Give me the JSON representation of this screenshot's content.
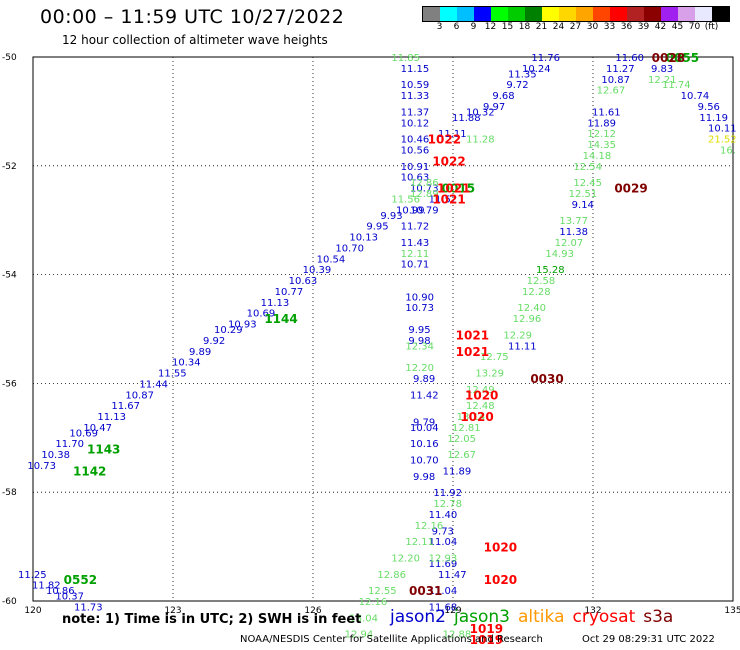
{
  "header": {
    "title": "00:00 – 11:59 UTC 10/27/2022",
    "subtitle": "12 hour collection of altimeter wave heights"
  },
  "scale": {
    "colors": [
      "#808080",
      "#00ffff",
      "#00bfff",
      "#0000ff",
      "#00ff00",
      "#00cc00",
      "#008000",
      "#ffff00",
      "#ffd700",
      "#ffa500",
      "#ff4500",
      "#ff0000",
      "#b22222",
      "#8b0000",
      "#a020f0",
      "#d8a0e8",
      "#e8e8ff",
      "#000000"
    ],
    "labels": [
      "3",
      "6",
      "9",
      "12",
      "15",
      "18",
      "21",
      "24",
      "27",
      "30",
      "33",
      "36",
      "39",
      "42",
      "45",
      "70",
      "(ft)"
    ]
  },
  "axes": {
    "lon_ticks": [
      "120",
      "123",
      "126",
      "129",
      "132",
      "135"
    ],
    "lat_ticks": [
      "-50",
      "-52",
      "-54",
      "-56",
      "-58",
      "-60"
    ]
  },
  "colors": {
    "jason2": "#0000cc",
    "jason3": "#00a000",
    "altika": "#ff9900",
    "cryosat": "#ff0000",
    "s3a": "#800000",
    "swh_light": "#66dd66",
    "swh_yellow": "#dddd00"
  },
  "observations": [
    {
      "lon": 120.2,
      "lat": -57.5,
      "text": "10.73",
      "c": "jason2"
    },
    {
      "lon": 120.5,
      "lat": -57.3,
      "text": "10.38",
      "c": "jason2"
    },
    {
      "lon": 120.8,
      "lat": -57.1,
      "text": "11.70",
      "c": "jason2"
    },
    {
      "lon": 121.1,
      "lat": -56.9,
      "text": "10.69",
      "c": "jason2"
    },
    {
      "lon": 121.4,
      "lat": -56.8,
      "text": "10.47",
      "c": "jason2"
    },
    {
      "lon": 121.7,
      "lat": -56.6,
      "text": "11.13",
      "c": "jason2"
    },
    {
      "lon": 122.0,
      "lat": -56.4,
      "text": "11.67",
      "c": "jason2"
    },
    {
      "lon": 122.3,
      "lat": -56.2,
      "text": "10.87",
      "c": "jason2"
    },
    {
      "lon": 122.6,
      "lat": -56.0,
      "text": "11.44",
      "c": "jason2"
    },
    {
      "lon": 123.0,
      "lat": -55.8,
      "text": "11.55",
      "c": "jason2"
    },
    {
      "lon": 123.3,
      "lat": -55.6,
      "text": "10.34",
      "c": "jason2"
    },
    {
      "lon": 123.6,
      "lat": -55.4,
      "text": "9.89",
      "c": "jason2"
    },
    {
      "lon": 123.9,
      "lat": -55.2,
      "text": "9.92",
      "c": "jason2"
    },
    {
      "lon": 124.2,
      "lat": -55.0,
      "text": "10.29",
      "c": "jason2"
    },
    {
      "lon": 124.5,
      "lat": -54.9,
      "text": "10.93",
      "c": "jason2"
    },
    {
      "lon": 124.9,
      "lat": -54.7,
      "text": "10.69",
      "c": "jason2"
    },
    {
      "lon": 125.2,
      "lat": -54.5,
      "text": "11.13",
      "c": "jason2"
    },
    {
      "lon": 125.5,
      "lat": -54.3,
      "text": "10.77",
      "c": "jason2"
    },
    {
      "lon": 125.8,
      "lat": -54.1,
      "text": "10.63",
      "c": "jason2"
    },
    {
      "lon": 126.1,
      "lat": -53.9,
      "text": "10.39",
      "c": "jason2"
    },
    {
      "lon": 126.4,
      "lat": -53.7,
      "text": "10.54",
      "c": "jason2"
    },
    {
      "lon": 126.8,
      "lat": -53.5,
      "text": "10.70",
      "c": "jason2"
    },
    {
      "lon": 127.1,
      "lat": -53.3,
      "text": "10.13",
      "c": "jason2"
    },
    {
      "lon": 127.4,
      "lat": -53.1,
      "text": "9.95",
      "c": "jason2"
    },
    {
      "lon": 127.7,
      "lat": -52.9,
      "text": "9.93",
      "c": "jason2"
    },
    {
      "lon": 128.2,
      "lat": -50.2,
      "text": "11.15",
      "c": "jason2"
    },
    {
      "lon": 128.2,
      "lat": -50.5,
      "text": "10.59",
      "c": "jason2"
    },
    {
      "lon": 128.2,
      "lat": -50.7,
      "text": "11.33",
      "c": "jason2"
    },
    {
      "lon": 128.2,
      "lat": -51.0,
      "text": "11.37",
      "c": "jason2"
    },
    {
      "lon": 128.2,
      "lat": -51.2,
      "text": "10.12",
      "c": "jason2"
    },
    {
      "lon": 128.2,
      "lat": -51.5,
      "text": "10.46",
      "c": "jason2"
    },
    {
      "lon": 128.2,
      "lat": -51.7,
      "text": "10.56",
      "c": "jason2"
    },
    {
      "lon": 128.2,
      "lat": -52.0,
      "text": "10.91",
      "c": "jason2"
    },
    {
      "lon": 128.2,
      "lat": -52.2,
      "text": "10.63",
      "c": "jason2"
    },
    {
      "lon": 128.4,
      "lat": -52.4,
      "text": "10.73",
      "c": "jason2"
    },
    {
      "lon": 128.1,
      "lat": -52.8,
      "text": "10.99",
      "c": "jason2"
    },
    {
      "lon": 128.4,
      "lat": -52.8,
      "text": "10.79",
      "c": "jason2"
    },
    {
      "lon": 128.2,
      "lat": -53.1,
      "text": "11.72",
      "c": "jason2"
    },
    {
      "lon": 128.2,
      "lat": -53.4,
      "text": "11.43",
      "c": "jason2"
    },
    {
      "lon": 128.2,
      "lat": -53.8,
      "text": "10.71",
      "c": "jason2"
    },
    {
      "lon": 128.3,
      "lat": -54.4,
      "text": "10.90",
      "c": "jason2"
    },
    {
      "lon": 128.3,
      "lat": -54.6,
      "text": "10.73",
      "c": "jason2"
    },
    {
      "lon": 128.3,
      "lat": -55.0,
      "text": "9.95",
      "c": "jason2"
    },
    {
      "lon": 128.3,
      "lat": -55.2,
      "text": "9.98",
      "c": "jason2"
    },
    {
      "lon": 128.4,
      "lat": -55.9,
      "text": "9.89",
      "c": "jason2"
    },
    {
      "lon": 128.4,
      "lat": -56.2,
      "text": "11.42",
      "c": "jason2"
    },
    {
      "lon": 128.4,
      "lat": -56.7,
      "text": "9.79",
      "c": "jason2"
    },
    {
      "lon": 128.4,
      "lat": -56.8,
      "text": "10.04",
      "c": "jason2"
    },
    {
      "lon": 128.4,
      "lat": -57.1,
      "text": "10.16",
      "c": "jason2"
    },
    {
      "lon": 128.4,
      "lat": -57.4,
      "text": "10.70",
      "c": "jason2"
    },
    {
      "lon": 128.4,
      "lat": -57.7,
      "text": "9.98",
      "c": "jason2"
    },
    {
      "lon": 129.1,
      "lat": -57.6,
      "text": "11.89",
      "c": "jason2"
    },
    {
      "lon": 128.9,
      "lat": -58.0,
      "text": "11.92",
      "c": "jason2"
    },
    {
      "lon": 128.8,
      "lat": -58.4,
      "text": "11.40",
      "c": "jason2"
    },
    {
      "lon": 128.8,
      "lat": -58.7,
      "text": "9.73",
      "c": "jason2"
    },
    {
      "lon": 128.8,
      "lat": -58.9,
      "text": "11.04",
      "c": "jason2"
    },
    {
      "lon": 128.8,
      "lat": -59.3,
      "text": "11.69",
      "c": "jason2"
    },
    {
      "lon": 129.0,
      "lat": -59.5,
      "text": "11.47",
      "c": "jason2"
    },
    {
      "lon": 128.8,
      "lat": -59.8,
      "text": "11.04",
      "c": "jason2"
    },
    {
      "lon": 128.8,
      "lat": -60.1,
      "text": "11.68",
      "c": "jason2"
    },
    {
      "lon": 128.8,
      "lat": -52.6,
      "text": "11.52",
      "c": "jason2"
    },
    {
      "lon": 129.0,
      "lat": -51.4,
      "text": "11.11",
      "c": "jason2"
    },
    {
      "lon": 129.3,
      "lat": -51.1,
      "text": "11.88",
      "c": "jason2"
    },
    {
      "lon": 129.6,
      "lat": -51.0,
      "text": "10.32",
      "c": "jason2"
    },
    {
      "lon": 129.9,
      "lat": -50.9,
      "text": "9.97",
      "c": "jason2"
    },
    {
      "lon": 130.1,
      "lat": -50.7,
      "text": "9.68",
      "c": "jason2"
    },
    {
      "lon": 130.4,
      "lat": -50.5,
      "text": "9.72",
      "c": "jason2"
    },
    {
      "lon": 130.5,
      "lat": -50.3,
      "text": "11.35",
      "c": "jason2"
    },
    {
      "lon": 130.8,
      "lat": -50.2,
      "text": "10.24",
      "c": "jason2"
    },
    {
      "lon": 131.0,
      "lat": -50.0,
      "text": "11.76",
      "c": "jason2"
    },
    {
      "lon": 132.8,
      "lat": -50.0,
      "text": "11.60",
      "c": "jason2"
    },
    {
      "lon": 132.6,
      "lat": -50.2,
      "text": "11.27",
      "c": "jason2"
    },
    {
      "lon": 132.5,
      "lat": -50.4,
      "text": "10.87",
      "c": "jason2"
    },
    {
      "lon": 132.3,
      "lat": -51.0,
      "text": "11.61",
      "c": "jason2"
    },
    {
      "lon": 132.2,
      "lat": -51.2,
      "text": "11.89",
      "c": "jason2"
    },
    {
      "lon": 131.8,
      "lat": -52.7,
      "text": "9.14",
      "c": "jason2"
    },
    {
      "lon": 131.6,
      "lat": -53.2,
      "text": "11.38",
      "c": "jason2"
    },
    {
      "lon": 130.5,
      "lat": -55.3,
      "text": "11.11",
      "c": "jason2"
    },
    {
      "lon": 133.5,
      "lat": -50.2,
      "text": "9.83",
      "c": "jason2"
    },
    {
      "lon": 134.2,
      "lat": -50.7,
      "text": "10.74",
      "c": "jason2"
    },
    {
      "lon": 134.5,
      "lat": -50.9,
      "text": "9.56",
      "c": "jason2"
    },
    {
      "lon": 134.6,
      "lat": -51.1,
      "text": "11.19",
      "c": "jason2"
    },
    {
      "lon": 134.8,
      "lat": -51.3,
      "text": "10.11",
      "c": "jason2"
    },
    {
      "lon": 120.0,
      "lat": -59.5,
      "text": "11.25",
      "c": "jason2"
    },
    {
      "lon": 120.3,
      "lat": -59.7,
      "text": "11.82",
      "c": "jason2"
    },
    {
      "lon": 120.6,
      "lat": -59.8,
      "text": "10.86",
      "c": "jason2"
    },
    {
      "lon": 120.8,
      "lat": -59.9,
      "text": "10.37",
      "c": "jason2"
    },
    {
      "lon": 121.2,
      "lat": -60.1,
      "text": "11.73",
      "c": "jason2"
    },
    {
      "lon": 129.6,
      "lat": -51.5,
      "text": "11.28",
      "c": "swh_light"
    },
    {
      "lon": 128.0,
      "lat": -50.0,
      "text": "11.85",
      "c": "swh_light"
    },
    {
      "lon": 128.0,
      "lat": -52.6,
      "text": "11.56",
      "c": "swh_light"
    },
    {
      "lon": 128.2,
      "lat": -53.6,
      "text": "12.11",
      "c": "swh_light"
    },
    {
      "lon": 128.3,
      "lat": -55.3,
      "text": "12.34",
      "c": "swh_light"
    },
    {
      "lon": 128.3,
      "lat": -55.7,
      "text": "12.20",
      "c": "swh_light"
    },
    {
      "lon": 129.2,
      "lat": -57.0,
      "text": "12.05",
      "c": "swh_light"
    },
    {
      "lon": 129.2,
      "lat": -57.3,
      "text": "12.67",
      "c": "swh_light"
    },
    {
      "lon": 128.9,
      "lat": -58.2,
      "text": "12.78",
      "c": "swh_light"
    },
    {
      "lon": 128.5,
      "lat": -58.6,
      "text": "12.16",
      "c": "swh_light"
    },
    {
      "lon": 128.3,
      "lat": -58.9,
      "text": "12.11",
      "c": "swh_light"
    },
    {
      "lon": 128.0,
      "lat": -59.2,
      "text": "12.20",
      "c": "swh_light"
    },
    {
      "lon": 128.8,
      "lat": -59.2,
      "text": "12.93",
      "c": "swh_light"
    },
    {
      "lon": 127.7,
      "lat": -59.5,
      "text": "12.86",
      "c": "swh_light"
    },
    {
      "lon": 127.5,
      "lat": -59.8,
      "text": "12.55",
      "c": "swh_light"
    },
    {
      "lon": 127.3,
      "lat": -60.0,
      "text": "12.16",
      "c": "swh_light"
    },
    {
      "lon": 127.1,
      "lat": -60.3,
      "text": "13.04",
      "c": "swh_light"
    },
    {
      "lon": 127.0,
      "lat": -60.6,
      "text": "12.94",
      "c": "swh_light"
    },
    {
      "lon": 129.1,
      "lat": -60.6,
      "text": "12.88",
      "c": "swh_light"
    },
    {
      "lon": 129.6,
      "lat": -56.4,
      "text": "12.48",
      "c": "swh_light"
    },
    {
      "lon": 129.4,
      "lat": -56.6,
      "text": "13.14",
      "c": "swh_light"
    },
    {
      "lon": 129.3,
      "lat": -56.8,
      "text": "12.81",
      "c": "swh_light"
    },
    {
      "lon": 129.6,
      "lat": -56.1,
      "text": "12.49",
      "c": "swh_light"
    },
    {
      "lon": 129.8,
      "lat": -55.8,
      "text": "13.29",
      "c": "swh_light"
    },
    {
      "lon": 129.9,
      "lat": -55.5,
      "text": "12.75",
      "c": "swh_light"
    },
    {
      "lon": 130.4,
      "lat": -55.1,
      "text": "12.29",
      "c": "swh_light"
    },
    {
      "lon": 130.6,
      "lat": -54.8,
      "text": "12.96",
      "c": "swh_light"
    },
    {
      "lon": 130.7,
      "lat": -54.6,
      "text": "12.40",
      "c": "swh_light"
    },
    {
      "lon": 130.8,
      "lat": -54.3,
      "text": "12.28",
      "c": "swh_light"
    },
    {
      "lon": 130.9,
      "lat": -54.1,
      "text": "12.58",
      "c": "swh_light"
    },
    {
      "lon": 131.1,
      "lat": -53.9,
      "text": "15.28",
      "c": "jason3"
    },
    {
      "lon": 131.3,
      "lat": -53.6,
      "text": "14.93",
      "c": "swh_light"
    },
    {
      "lon": 131.5,
      "lat": -53.4,
      "text": "12.07",
      "c": "swh_light"
    },
    {
      "lon": 131.6,
      "lat": -53.0,
      "text": "13.77",
      "c": "swh_light"
    },
    {
      "lon": 131.8,
      "lat": -52.5,
      "text": "12.51",
      "c": "swh_light"
    },
    {
      "lon": 131.9,
      "lat": -52.3,
      "text": "12.45",
      "c": "swh_light"
    },
    {
      "lon": 131.9,
      "lat": -52.0,
      "text": "12.54",
      "c": "swh_light"
    },
    {
      "lon": 132.1,
      "lat": -51.8,
      "text": "14.18",
      "c": "swh_light"
    },
    {
      "lon": 132.2,
      "lat": -51.6,
      "text": "14.35",
      "c": "swh_light"
    },
    {
      "lon": 132.2,
      "lat": -51.4,
      "text": "12.12",
      "c": "swh_light"
    },
    {
      "lon": 132.4,
      "lat": -50.6,
      "text": "12.67",
      "c": "swh_light"
    },
    {
      "lon": 133.5,
      "lat": -50.4,
      "text": "12.21",
      "c": "swh_light"
    },
    {
      "lon": 133.8,
      "lat": -50.5,
      "text": "11.74",
      "c": "swh_light"
    },
    {
      "lon": 134.8,
      "lat": -51.5,
      "text": "21.52",
      "c": "swh_yellow"
    },
    {
      "lon": 135.0,
      "lat": -51.7,
      "text": "16.",
      "c": "swh_light"
    },
    {
      "lon": 128.4,
      "lat": -52.3,
      "text": "12.86",
      "c": "swh_light"
    },
    {
      "lon": 128.4,
      "lat": -52.5,
      "text": "12.89",
      "c": "swh_light"
    }
  ],
  "time_labels": [
    {
      "lon": 121.2,
      "lat": -57.6,
      "text": "1142",
      "c": "jason3"
    },
    {
      "lon": 121.5,
      "lat": -57.2,
      "text": "1143",
      "c": "jason3"
    },
    {
      "lon": 125.3,
      "lat": -54.8,
      "text": "1144",
      "c": "jason3"
    },
    {
      "lon": 121.0,
      "lat": -59.6,
      "text": "0552",
      "c": "jason3"
    },
    {
      "lon": 129.1,
      "lat": -52.4,
      "text": "0015",
      "c": "jason3"
    },
    {
      "lon": 133.9,
      "lat": -50.0,
      "text": "0055",
      "c": "jason3"
    },
    {
      "lon": 128.8,
      "lat": -51.5,
      "text": "1022",
      "c": "cryosat"
    },
    {
      "lon": 128.9,
      "lat": -51.9,
      "text": "1022",
      "c": "cryosat"
    },
    {
      "lon": 129.0,
      "lat": -52.4,
      "text": "1021",
      "c": "cryosat"
    },
    {
      "lon": 128.9,
      "lat": -52.6,
      "text": "1021",
      "c": "cryosat"
    },
    {
      "lon": 129.4,
      "lat": -55.1,
      "text": "1021",
      "c": "cryosat"
    },
    {
      "lon": 129.4,
      "lat": -55.4,
      "text": "1021",
      "c": "cryosat"
    },
    {
      "lon": 129.6,
      "lat": -56.2,
      "text": "1020",
      "c": "cryosat"
    },
    {
      "lon": 129.5,
      "lat": -56.6,
      "text": "1020",
      "c": "cryosat"
    },
    {
      "lon": 130.0,
      "lat": -59.0,
      "text": "1020",
      "c": "cryosat"
    },
    {
      "lon": 130.0,
      "lat": -59.6,
      "text": "1020",
      "c": "cryosat"
    },
    {
      "lon": 129.7,
      "lat": -60.5,
      "text": "1019",
      "c": "cryosat"
    },
    {
      "lon": 129.7,
      "lat": -60.7,
      "text": "1019",
      "c": "cryosat"
    },
    {
      "lon": 128.4,
      "lat": -59.8,
      "text": "0031",
      "c": "s3a"
    },
    {
      "lon": 131.0,
      "lat": -55.9,
      "text": "0030",
      "c": "s3a"
    },
    {
      "lon": 132.8,
      "lat": -52.4,
      "text": "0029",
      "c": "s3a"
    },
    {
      "lon": 133.6,
      "lat": -50.0,
      "text": "0028",
      "c": "s3a"
    }
  ],
  "footer": {
    "note": "note:  1) Time is in UTC;  2) SWH is in feet",
    "legend": [
      {
        "label": "jason2",
        "color": "#0000cc"
      },
      {
        "label": "jason3",
        "color": "#00a000"
      },
      {
        "label": "altika",
        "color": "#ff9900"
      },
      {
        "label": "cryosat",
        "color": "#ff0000"
      },
      {
        "label": "s3a",
        "color": "#800000"
      }
    ],
    "credit": "NOAA/NESDIS Center for Satellite Applications and Research",
    "timestamp": "Oct 29 08:29:31 UTC 2022"
  }
}
